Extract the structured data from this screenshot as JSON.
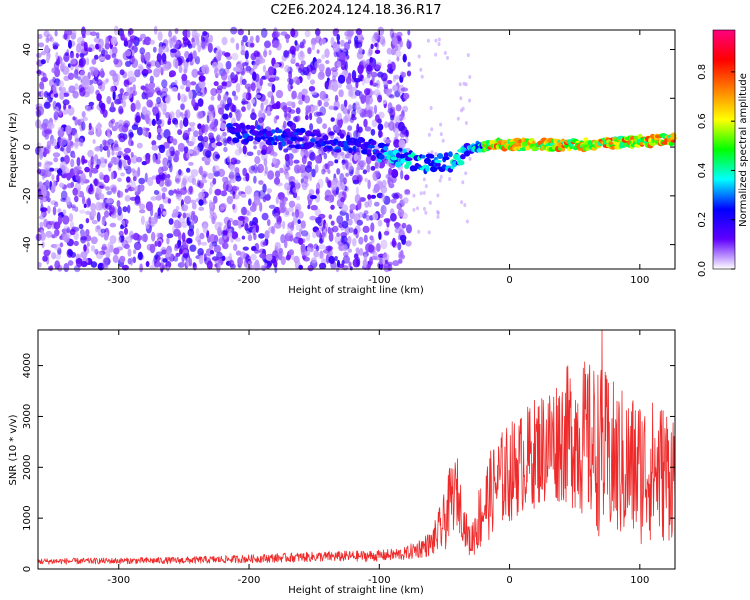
{
  "title": "C2E6.2024.124.18.36.R17",
  "colors": {
    "snr_line": "#ee2a2a",
    "axis": "#000000",
    "background": "#ffffff"
  },
  "chart_data": [
    {
      "type": "heatmap",
      "xlabel": "Height of straight line (km)",
      "ylabel": "Frequency (Hz)",
      "xlim": [
        -362,
        127
      ],
      "ylim": [
        -50,
        48
      ],
      "x_ticks": [
        -300,
        -200,
        -100,
        0,
        100
      ],
      "y_ticks": [
        -40,
        -20,
        0,
        20,
        40
      ],
      "colorbar": {
        "label": "Normalized spectral amplitude",
        "range": [
          0,
          0.97
        ],
        "ticks": [
          0.0,
          0.2,
          0.4,
          0.6,
          0.8
        ],
        "tick_labels": [
          "0.0",
          "0.2",
          "0.4",
          "0.6",
          "0.8"
        ],
        "colormap": [
          "#ffffff",
          "#6000ff",
          "#0000ff",
          "#00ffff",
          "#00ff00",
          "#ffff00",
          "#ff8000",
          "#ff0000",
          "#ff0080"
        ]
      },
      "trend": {
        "x": [
          -210,
          -180,
          -150,
          -120,
          -100,
          -80,
          -60,
          -45,
          -35,
          -25,
          -10,
          0,
          30,
          60,
          90,
          120
        ],
        "y": [
          6,
          4,
          3,
          1,
          -2,
          -5,
          -7,
          -6,
          -3,
          0,
          1,
          1,
          1,
          1,
          2,
          3
        ]
      }
    },
    {
      "type": "line",
      "xlabel": "Height of straight line (km)",
      "ylabel": "SNR (10 * v/v)",
      "xlim": [
        -362,
        127
      ],
      "ylim": [
        0,
        4700
      ],
      "x_ticks": [
        -300,
        -200,
        -100,
        0,
        100
      ],
      "y_ticks": [
        0,
        1000,
        2000,
        3000,
        4000
      ],
      "envelope": {
        "x": [
          -362,
          -300,
          -250,
          -200,
          -150,
          -100,
          -80,
          -60,
          -50,
          -45,
          -40,
          -35,
          -30,
          -25,
          -20,
          -10,
          0,
          10,
          20,
          30,
          40,
          50,
          60,
          70,
          80,
          90,
          100,
          110,
          120,
          127
        ],
        "mean": [
          150,
          160,
          170,
          200,
          240,
          260,
          300,
          500,
          900,
          1400,
          1500,
          900,
          500,
          900,
          1200,
          1700,
          1900,
          2100,
          2300,
          2450,
          2600,
          2650,
          2500,
          2300,
          2100,
          2000,
          1950,
          1950,
          1900,
          1900
        ],
        "amp": [
          60,
          60,
          70,
          80,
          100,
          110,
          130,
          250,
          600,
          700,
          700,
          400,
          300,
          600,
          800,
          900,
          1000,
          1000,
          1100,
          1200,
          1300,
          1500,
          1600,
          1700,
          1600,
          1500,
          1500,
          1400,
          1400,
          1300
        ]
      },
      "peak": {
        "x": 71,
        "y": 4700
      }
    }
  ]
}
